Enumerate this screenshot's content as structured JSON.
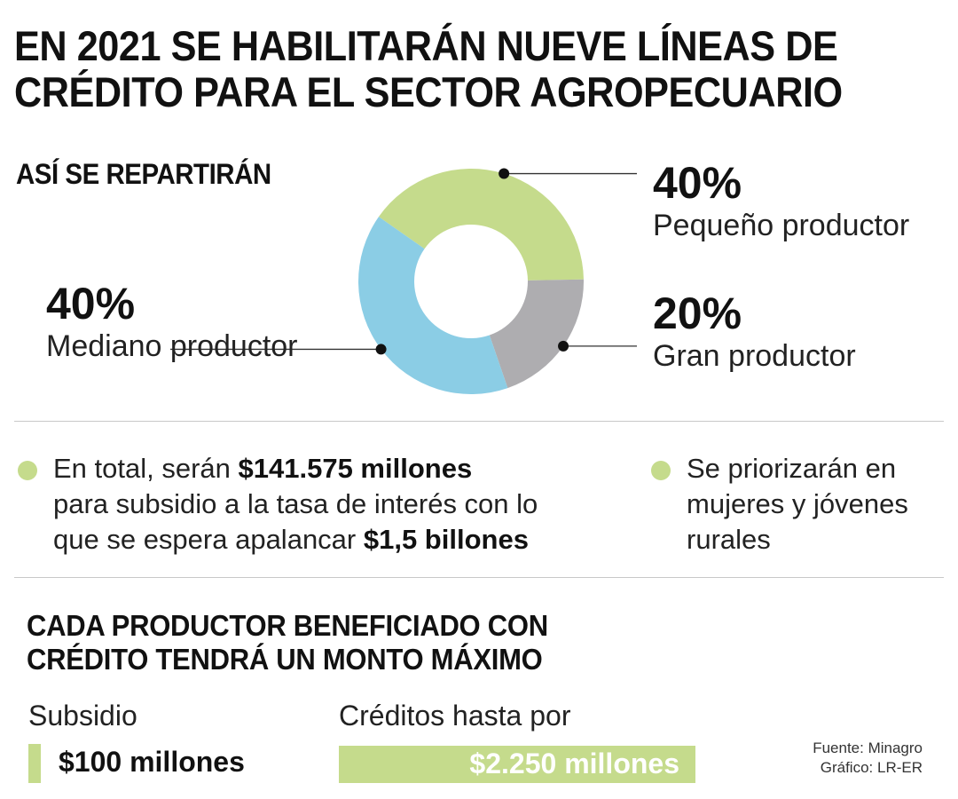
{
  "title": {
    "line1": "EN 2021 SE HABILITARÁN NUEVE LÍNEAS DE",
    "line2": "CRÉDITO PARA EL SECTOR AGROPECUARIO"
  },
  "chart_data": {
    "type": "pie",
    "subtitle": "ASÍ SE REPARTIRÁN",
    "slices": [
      {
        "label": "Pequeño productor",
        "value": 40,
        "display": "40%",
        "color": "#c5db8c"
      },
      {
        "label": "Gran productor",
        "value": 20,
        "display": "20%",
        "color": "#aeadb0"
      },
      {
        "label": "Mediano productor",
        "value": 40,
        "display": "40%",
        "color": "#8bcde5"
      }
    ]
  },
  "bullets": {
    "left": {
      "p1": "En total, serán ",
      "b1": "$141.575 millones",
      "p2": "para subsidio a la tasa de interés con lo",
      "p3": "que se espera apalancar ",
      "b2": "$1,5 billones"
    },
    "right": {
      "l1": "Se priorizarán en",
      "l2": "mujeres y jóvenes",
      "l3": "rurales"
    }
  },
  "section": {
    "line1": "CADA PRODUCTOR BENEFICIADO CON",
    "line2": "CRÉDITO TENDRÁ UN MONTO MÁXIMO"
  },
  "amounts": {
    "subsidy_label": "Subsidio",
    "subsidy_value": "$100 millones",
    "credit_label": "Créditos hasta por",
    "credit_value": "$2.250 millones"
  },
  "source": {
    "line1": "Fuente: Minagro",
    "line2": "Gráfico: LR-ER"
  },
  "colors": {
    "accent_green": "#c5db8c",
    "gray": "#aeadb0",
    "blue": "#8bcde5"
  }
}
